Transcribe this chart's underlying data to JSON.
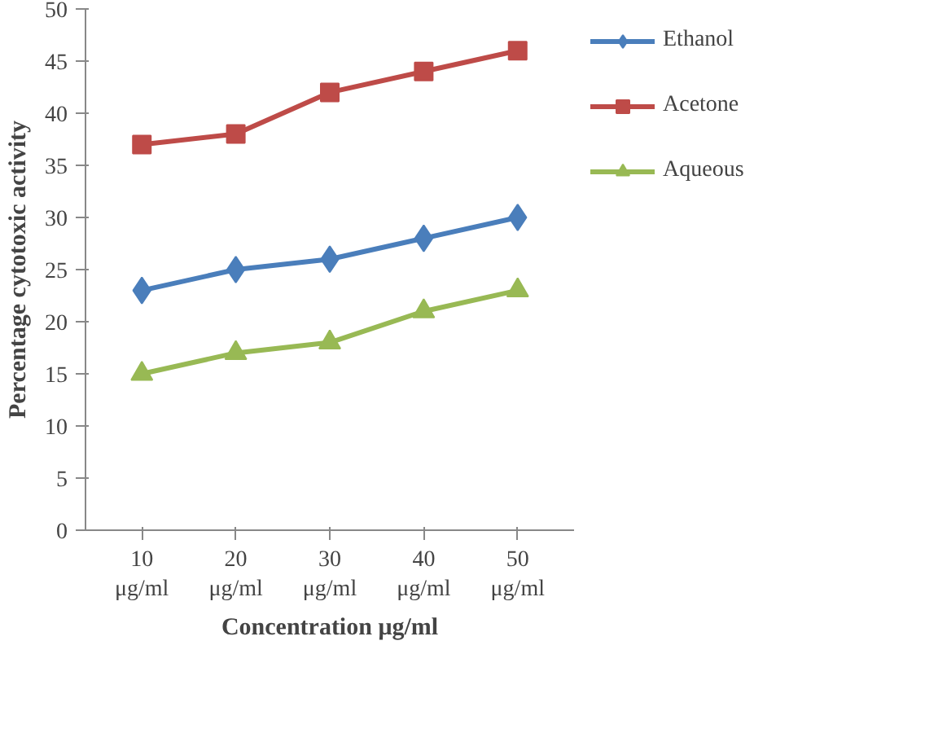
{
  "chart_data": {
    "type": "line",
    "xlabel": "Concentration μg/ml",
    "ylabel": "Percentage cytotoxic activity",
    "categories": [
      "10 μg/ml",
      "20 μg/ml",
      "30 μg/ml",
      "40 μg/ml",
      "50 μg/ml"
    ],
    "series": [
      {
        "name": "Ethanol",
        "color": "#4a7ebb",
        "marker": "diamond",
        "values": [
          23,
          25,
          26,
          28,
          30
        ]
      },
      {
        "name": "Acetone",
        "color": "#be4b48",
        "marker": "square",
        "values": [
          37,
          38,
          42,
          44,
          46
        ]
      },
      {
        "name": "Aqueous",
        "color": "#98b954",
        "marker": "triangle",
        "values": [
          15,
          17,
          18,
          21,
          23
        ]
      }
    ],
    "ylim": [
      0,
      50
    ],
    "yticks": [
      0,
      5,
      10,
      15,
      20,
      25,
      30,
      35,
      40,
      45,
      50
    ],
    "grid": false,
    "legend": "right",
    "line_style": "solid"
  }
}
